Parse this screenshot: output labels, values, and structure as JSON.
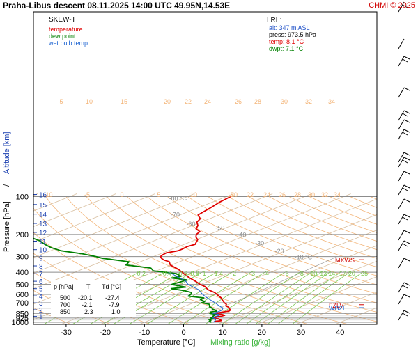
{
  "header": {
    "title": "Praha-Libus   descent   08.11.2025 14:00 UTC   49.95N,14.53E",
    "credit": "CHMI © 2025"
  },
  "legend": {
    "title": "SKEW-T",
    "items": [
      {
        "label": "temperature",
        "color": "#e00000"
      },
      {
        "label": "dew point",
        "color": "#008000"
      },
      {
        "label": "wet bulb temp.",
        "color": "#1e64d2"
      }
    ]
  },
  "lrl": {
    "title": "LRL:",
    "lines": [
      {
        "text": "alt: 347 m ASL",
        "color": "#1e50c8"
      },
      {
        "text": "press: 973.5 hPa",
        "color": "#000000"
      },
      {
        "text": "temp: 8.1 °C",
        "color": "#e00000"
      },
      {
        "text": "dwpt: 7.1 °C",
        "color": "#008000"
      }
    ]
  },
  "table": {
    "headers": [
      "p [hPa]",
      "T",
      "Td [°C]"
    ],
    "rows": [
      [
        "500",
        "-20.1",
        "-27.4"
      ],
      [
        "700",
        "-2.1",
        "-7.9"
      ],
      [
        "850",
        "2.3",
        "1.0"
      ]
    ]
  },
  "chart_data": {
    "type": "line",
    "xlabel": "Temperature [°C]",
    "xlabel2": "Mixing ratio [g/kg]",
    "ylabel": "Pressure [hPa]",
    "ylabel_sep": "/",
    "ylabel2": "Altitude [km]",
    "x_ticks": [
      -30,
      -20,
      -10,
      0,
      10,
      20,
      30,
      40
    ],
    "pressure_ticks": [
      100,
      200,
      300,
      400,
      500,
      600,
      700,
      850,
      925,
      1000
    ],
    "altitude_ticks_km": [
      1,
      2,
      3,
      4,
      5,
      6,
      7,
      8,
      9,
      10,
      11,
      12,
      13,
      14,
      15,
      16
    ],
    "isotherm_labels": [
      {
        "text": "-80 °C",
        "t": -80,
        "p": 107
      },
      {
        "text": "-70",
        "t": -70,
        "p": 145
      },
      {
        "text": "-60",
        "t": -60,
        "p": 172
      },
      {
        "text": "-50",
        "t": -50,
        "p": 185
      },
      {
        "text": "-40",
        "t": -40,
        "p": 210
      },
      {
        "text": "-30",
        "t": -30,
        "p": 245
      },
      {
        "text": "-20",
        "t": -20,
        "p": 282
      },
      {
        "text": "-10 °C",
        "t": -10,
        "p": 315
      }
    ],
    "theta_labels_upper": [
      "5",
      "10",
      "15",
      "20",
      "22",
      "24",
      "26",
      "28",
      "30",
      "32",
      "34"
    ],
    "theta_labels_lower": [
      "-10",
      "-5",
      "0",
      "5",
      "10",
      "15",
      "20",
      "22",
      "24",
      "26",
      "28",
      "30",
      "32",
      "34"
    ],
    "mixing_ratio_labels": [
      "0.2",
      "0.4",
      "0.6",
      "0.8",
      "1",
      "1.4",
      "2",
      "3",
      "4",
      "6",
      "8",
      "10",
      "12",
      "14",
      "17",
      "20",
      "25"
    ],
    "markers": [
      {
        "label": "MXWS",
        "p": 318,
        "color": "#d00000"
      },
      {
        "label": "FZLV",
        "p": 725,
        "color": "#d00000"
      },
      {
        "label": "WBZL",
        "p": 765,
        "color": "#1e64d2"
      }
    ],
    "series": [
      {
        "name": "temperature",
        "color": "#e00000",
        "points": [
          [
            1000,
            8.1
          ],
          [
            985,
            7.6
          ],
          [
            970,
            8.6
          ],
          [
            955,
            7.8
          ],
          [
            940,
            6.7
          ],
          [
            925,
            5.2
          ],
          [
            910,
            4.6
          ],
          [
            895,
            5.8
          ],
          [
            880,
            6.0
          ],
          [
            865,
            4.6
          ],
          [
            850,
            2.3
          ],
          [
            830,
            3.4
          ],
          [
            815,
            4.4
          ],
          [
            800,
            4.1
          ],
          [
            780,
            3.0
          ],
          [
            760,
            1.9
          ],
          [
            740,
            0.2
          ],
          [
            720,
            -0.6
          ],
          [
            700,
            -2.1
          ],
          [
            670,
            -4.1
          ],
          [
            640,
            -6.1
          ],
          [
            610,
            -8.6
          ],
          [
            580,
            -11.2
          ],
          [
            550,
            -14.8
          ],
          [
            520,
            -17.5
          ],
          [
            500,
            -20.1
          ],
          [
            470,
            -23.6
          ],
          [
            440,
            -27.5
          ],
          [
            410,
            -31.3
          ],
          [
            380,
            -35.3
          ],
          [
            350,
            -40.3
          ],
          [
            330,
            -42.6
          ],
          [
            320,
            -45.0
          ],
          [
            310,
            -46.8
          ],
          [
            300,
            -48.2
          ],
          [
            290,
            -48.8
          ],
          [
            280,
            -49.1
          ],
          [
            270,
            -47.4
          ],
          [
            260,
            -47.5
          ],
          [
            250,
            -47.8
          ],
          [
            240,
            -47.2
          ],
          [
            230,
            -48.4
          ],
          [
            220,
            -49.6
          ],
          [
            210,
            -51.7
          ],
          [
            200,
            -53.3
          ],
          [
            190,
            -54.2
          ],
          [
            180,
            -57.1
          ],
          [
            170,
            -58.6
          ],
          [
            160,
            -61.0
          ],
          [
            150,
            -62.4
          ],
          [
            140,
            -65.4
          ],
          [
            130,
            -66.2
          ],
          [
            120,
            -67.1
          ],
          [
            110,
            -68.2
          ],
          [
            100,
            -68.9
          ]
        ]
      },
      {
        "name": "dew point",
        "color": "#008000",
        "points": [
          [
            1000,
            7.1
          ],
          [
            985,
            6.0
          ],
          [
            970,
            5.9
          ],
          [
            955,
            4.9
          ],
          [
            940,
            5.4
          ],
          [
            925,
            4.2
          ],
          [
            910,
            4.3
          ],
          [
            895,
            3.6
          ],
          [
            880,
            3.4
          ],
          [
            865,
            3.3
          ],
          [
            850,
            1.0
          ],
          [
            830,
            0.3
          ],
          [
            815,
            1.3
          ],
          [
            800,
            0.2
          ],
          [
            785,
            -1.2
          ],
          [
            770,
            -1.9
          ],
          [
            755,
            -3.2
          ],
          [
            740,
            -4.0
          ],
          [
            720,
            -4.9
          ],
          [
            700,
            -7.9
          ],
          [
            685,
            -7.9
          ],
          [
            660,
            -10.3
          ],
          [
            640,
            -10.5
          ],
          [
            620,
            -15.6
          ],
          [
            600,
            -16.1
          ],
          [
            580,
            -17.1
          ],
          [
            560,
            -20.3
          ],
          [
            540,
            -24.8
          ],
          [
            525,
            -22.1
          ],
          [
            500,
            -27.4
          ],
          [
            480,
            -26.8
          ],
          [
            460,
            -26.4
          ],
          [
            445,
            -31.4
          ],
          [
            430,
            -30.3
          ],
          [
            410,
            -33.2
          ],
          [
            390,
            -40.8
          ],
          [
            370,
            -43.3
          ],
          [
            350,
            -51.6
          ],
          [
            330,
            -52.9
          ],
          [
            310,
            -61.8
          ],
          [
            300,
            -64.7
          ],
          [
            285,
            -70.0
          ],
          [
            270,
            -77.3
          ],
          [
            255,
            -81.8
          ],
          [
            240,
            -85.6
          ],
          [
            225,
            -89.1
          ],
          [
            210,
            -94.1
          ],
          [
            200,
            -99.9
          ],
          [
            190,
            -101.0
          ],
          [
            180,
            -105.6
          ],
          [
            170,
            -108.9
          ],
          [
            160,
            -112.2
          ],
          [
            150,
            -117.6
          ],
          [
            140,
            -119.4
          ],
          [
            130,
            -124.4
          ],
          [
            120,
            -128.8
          ],
          [
            110,
            -135.2
          ],
          [
            100,
            -141.3
          ]
        ]
      },
      {
        "name": "wet bulb temp.",
        "color": "#1e64d2",
        "points": [
          [
            1000,
            7.6
          ],
          [
            970,
            7.0
          ],
          [
            940,
            6.1
          ],
          [
            925,
            4.7
          ],
          [
            900,
            4.4
          ],
          [
            880,
            4.6
          ],
          [
            865,
            4.0
          ],
          [
            850,
            1.7
          ],
          [
            820,
            2.1
          ],
          [
            800,
            2.0
          ],
          [
            770,
            0.9
          ],
          [
            740,
            -1.5
          ],
          [
            700,
            -4.5
          ],
          [
            650,
            -8.8
          ],
          [
            600,
            -13.1
          ],
          [
            550,
            -17.2
          ],
          [
            500,
            -23.2
          ],
          [
            470,
            -26.0
          ],
          [
            440,
            -30.1
          ],
          [
            410,
            -34.4
          ],
          [
            400,
            -36.1
          ]
        ]
      }
    ]
  }
}
